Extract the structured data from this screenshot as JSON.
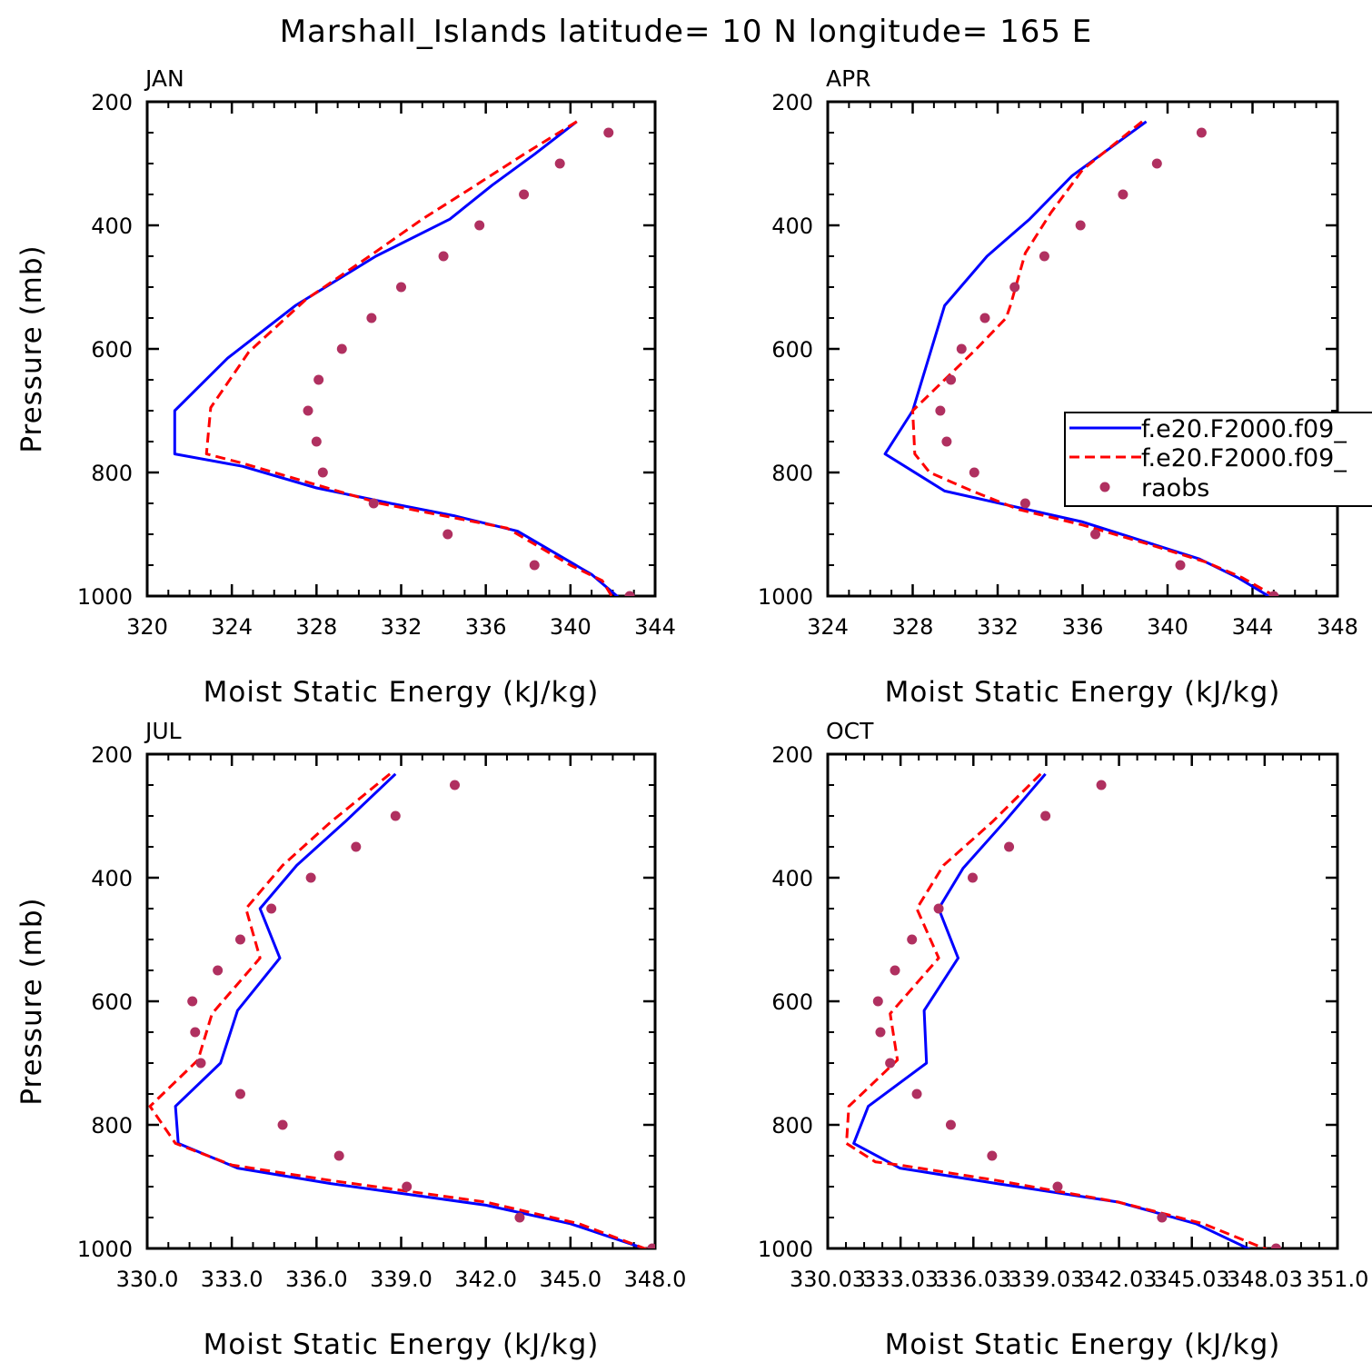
{
  "title": "Marshall_Islands  latitude= 10 N longitude= 165 E",
  "colors": {
    "model_1": "#0000ff",
    "model_2": "#ff0000",
    "raobs": "#b03060"
  },
  "legend": {
    "entries": [
      {
        "label": "f.e20.F2000.f09_",
        "style": "solid",
        "color": "#0000ff"
      },
      {
        "label": "f.e20.F2000.f09_",
        "style": "dashed",
        "color": "#ff0000"
      },
      {
        "label": "raobs",
        "style": "markers",
        "color": "#b03060"
      }
    ]
  },
  "chart_data": [
    {
      "type": "line",
      "panel": "JAN",
      "xlabel": "Moist Static Energy (kJ/kg)",
      "ylabel": "Pressure (mb)",
      "xlim": [
        320,
        344
      ],
      "ylim": [
        200,
        1000
      ],
      "y_inverted": true,
      "xticks": [
        "320",
        "324",
        "328",
        "332",
        "336",
        "340",
        "344"
      ],
      "yticks": [
        "200",
        "400",
        "600",
        "800",
        "1000"
      ],
      "series": [
        {
          "name": "f.e20.F2000.f09_",
          "style": "solid",
          "x": [
            340.3,
            338.3,
            336.3,
            334.3,
            330.8,
            327.0,
            323.8,
            321.3,
            321.3,
            324.5,
            328.0,
            331.5,
            334.5,
            337.5,
            340.0,
            341.0,
            342.3
          ],
          "y": [
            232,
            285,
            335,
            390,
            450,
            530,
            615,
            700,
            770,
            790,
            825,
            850,
            870,
            895,
            945,
            965,
            1003
          ]
        },
        {
          "name": "f.e20.F2000.f09_",
          "style": "dashed",
          "x": [
            340.3,
            337.8,
            335.3,
            333.0,
            330.5,
            327.5,
            324.8,
            323.0,
            322.8,
            324.5,
            327.5,
            331.0,
            334.0,
            337.0,
            340.0,
            341.5,
            342.0
          ],
          "y": [
            232,
            285,
            340,
            390,
            450,
            520,
            605,
            695,
            770,
            785,
            815,
            850,
            870,
            890,
            950,
            975,
            1003
          ]
        },
        {
          "name": "raobs",
          "style": "markers",
          "x": [
            341.8,
            339.5,
            337.8,
            335.7,
            334.0,
            332.0,
            330.6,
            329.2,
            328.1,
            327.6,
            328.0,
            328.3,
            330.7,
            334.2,
            338.3,
            342.8
          ],
          "y": [
            250,
            300,
            350,
            400,
            450,
            500,
            550,
            600,
            650,
            700,
            750,
            800,
            850,
            900,
            950,
            1000
          ]
        }
      ]
    },
    {
      "type": "line",
      "panel": "APR",
      "xlabel": "Moist Static Energy (kJ/kg)",
      "ylabel": "",
      "xlim": [
        324,
        348
      ],
      "ylim": [
        200,
        1000
      ],
      "y_inverted": true,
      "xticks": [
        "324",
        "328",
        "332",
        "336",
        "340",
        "344",
        "348"
      ],
      "yticks": [
        "200",
        "400",
        "600",
        "800",
        "1000"
      ],
      "series": [
        {
          "name": "f.e20.F2000.f09_",
          "style": "solid",
          "x": [
            339.0,
            335.5,
            333.5,
            331.5,
            329.5,
            328.0,
            326.7,
            329.5,
            336.0,
            341.5,
            343.3,
            344.9
          ],
          "y": [
            232,
            320,
            390,
            450,
            530,
            700,
            770,
            830,
            880,
            940,
            970,
            1003
          ]
        },
        {
          "name": "f.e20.F2000.f09_",
          "style": "dashed",
          "x": [
            338.8,
            336.0,
            334.5,
            333.3,
            332.6,
            332.4,
            331.0,
            329.5,
            328.0,
            328.1,
            328.8,
            330.8,
            333.0,
            336.0,
            339.0,
            341.8,
            343.5,
            345.2
          ],
          "y": [
            232,
            310,
            380,
            445,
            530,
            550,
            600,
            650,
            700,
            770,
            800,
            830,
            860,
            885,
            915,
            945,
            970,
            1003
          ]
        },
        {
          "name": "raobs",
          "style": "markers",
          "x": [
            341.6,
            339.5,
            337.9,
            335.9,
            334.2,
            332.8,
            331.4,
            330.3,
            329.8,
            329.3,
            329.6,
            330.9,
            333.3,
            336.6,
            340.6,
            345.0
          ],
          "y": [
            250,
            300,
            350,
            400,
            450,
            500,
            550,
            600,
            650,
            700,
            750,
            800,
            850,
            900,
            950,
            1000
          ]
        }
      ]
    },
    {
      "type": "line",
      "panel": "JUL",
      "xlabel": "Moist Static Energy (kJ/kg)",
      "ylabel": "Pressure (mb)",
      "xlim": [
        330.0,
        348.0
      ],
      "ylim": [
        200,
        1000
      ],
      "y_inverted": true,
      "xticks": [
        "330.0",
        "333.0",
        "336.0",
        "339.0",
        "342.0",
        "345.0",
        "348.0"
      ],
      "yticks": [
        "200",
        "400",
        "600",
        "800",
        "1000"
      ],
      "series": [
        {
          "name": "f.e20.F2000.f09_",
          "style": "solid",
          "x": [
            338.8,
            337.0,
            335.3,
            334.0,
            334.7,
            333.2,
            332.6,
            331.0,
            331.1,
            333.2,
            336.5,
            342.0,
            345.0,
            347.8
          ],
          "y": [
            232,
            310,
            380,
            450,
            530,
            615,
            700,
            770,
            830,
            870,
            895,
            930,
            960,
            1003
          ]
        },
        {
          "name": "f.e20.F2000.f09_",
          "style": "dashed",
          "x": [
            338.6,
            336.5,
            334.8,
            333.5,
            334.0,
            332.3,
            331.8,
            330.1,
            331.0,
            333.0,
            336.5,
            342.0,
            345.3,
            347.8
          ],
          "y": [
            232,
            310,
            380,
            450,
            530,
            620,
            695,
            770,
            830,
            865,
            890,
            925,
            960,
            1003
          ]
        },
        {
          "name": "raobs",
          "style": "markers",
          "x": [
            340.9,
            338.8,
            337.4,
            335.8,
            334.4,
            333.3,
            332.5,
            331.6,
            331.7,
            331.9,
            333.3,
            334.8,
            336.8,
            339.2,
            343.2,
            347.9
          ],
          "y": [
            250,
            300,
            350,
            400,
            450,
            500,
            550,
            600,
            650,
            700,
            750,
            800,
            850,
            900,
            950,
            1000
          ]
        }
      ]
    },
    {
      "type": "line",
      "panel": "OCT",
      "xlabel": "Moist Static Energy (kJ/kg)",
      "ylabel": "",
      "xlim": [
        330.03,
        351.03
      ],
      "ylim": [
        200,
        1000
      ],
      "y_inverted": true,
      "xticks": [
        "330.03",
        "333.03",
        "336.03",
        "339.03",
        "342.03",
        "345.03",
        "348.03",
        "351.0"
      ],
      "yticks": [
        "200",
        "400",
        "600",
        "800",
        "1000"
      ],
      "series": [
        {
          "name": "f.e20.F2000.f09_",
          "style": "solid",
          "x": [
            339.0,
            337.3,
            335.6,
            334.6,
            335.4,
            334.0,
            334.1,
            331.7,
            331.1,
            333.0,
            337.0,
            342.0,
            345.2,
            347.5
          ],
          "y": [
            232,
            310,
            385,
            450,
            530,
            615,
            700,
            770,
            830,
            870,
            895,
            925,
            960,
            1003
          ]
        },
        {
          "name": "f.e20.F2000.f09_",
          "style": "dashed",
          "x": [
            338.8,
            336.8,
            334.8,
            333.7,
            334.6,
            332.6,
            332.9,
            330.9,
            330.8,
            332.0,
            333.0,
            337.0,
            342.0,
            345.5,
            348.2
          ],
          "y": [
            232,
            310,
            380,
            450,
            530,
            620,
            695,
            770,
            830,
            860,
            865,
            890,
            925,
            960,
            1003
          ]
        },
        {
          "name": "raobs",
          "style": "markers",
          "x": [
            341.3,
            339.0,
            337.5,
            336.0,
            334.6,
            333.5,
            332.8,
            332.1,
            332.2,
            332.6,
            333.7,
            335.1,
            336.8,
            339.5,
            343.8,
            348.5
          ],
          "y": [
            250,
            300,
            350,
            400,
            450,
            500,
            550,
            600,
            650,
            700,
            750,
            800,
            850,
            900,
            950,
            1000
          ]
        }
      ]
    }
  ]
}
